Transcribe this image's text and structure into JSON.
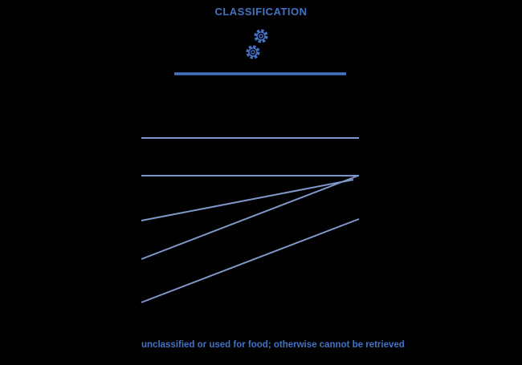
{
  "title": "CLASSIFICATION",
  "footnote": "unclassified or used for food; otherwise cannot be retrieved",
  "icon": "gears-icon",
  "colors": {
    "background": "#000000",
    "accent": "#4472c4",
    "line": "#7f98c9",
    "text": "#4472c4"
  }
}
